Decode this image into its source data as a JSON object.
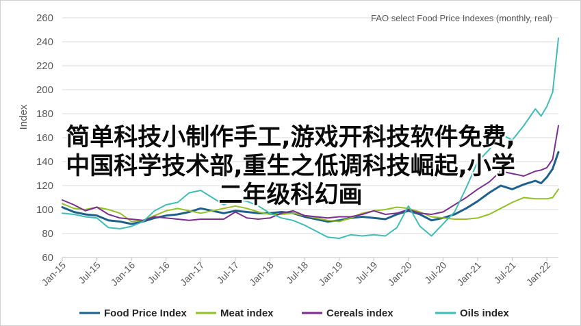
{
  "chart_data": {
    "type": "line",
    "title": "FAO select Food Price Indexes (monthly, real)",
    "ylabel": "Index",
    "ylim": [
      60,
      260
    ],
    "yticks": [
      60,
      80,
      100,
      120,
      140,
      160,
      180,
      200,
      220,
      240,
      260
    ],
    "xlim": [
      "2015-01",
      "2022-03"
    ],
    "xticks": [
      "Jan-15",
      "Jul-15",
      "Jan-16",
      "Jul-16",
      "Jan-17",
      "Jul-17",
      "Jan-18",
      "Jul-18",
      "Jan-19",
      "Jul-19",
      "Jan-20",
      "Jul-20",
      "Jan-21",
      "Jul-21",
      "Jan-22"
    ],
    "grid": true,
    "legend_position": "bottom",
    "series": [
      {
        "name": "Food Price Index",
        "color": "#1f5f8b",
        "points": [
          [
            "2015-01",
            102
          ],
          [
            "2015-03",
            98
          ],
          [
            "2015-05",
            96
          ],
          [
            "2015-07",
            95
          ],
          [
            "2015-09",
            91
          ],
          [
            "2015-11",
            90
          ],
          [
            "2016-01",
            88
          ],
          [
            "2016-03",
            90
          ],
          [
            "2016-05",
            93
          ],
          [
            "2016-07",
            95
          ],
          [
            "2016-09",
            96
          ],
          [
            "2016-11",
            98
          ],
          [
            "2017-01",
            101
          ],
          [
            "2017-03",
            99
          ],
          [
            "2017-05",
            97
          ],
          [
            "2017-07",
            99
          ],
          [
            "2017-09",
            98
          ],
          [
            "2017-11",
            97
          ],
          [
            "2018-01",
            97
          ],
          [
            "2018-03",
            98
          ],
          [
            "2018-05",
            97
          ],
          [
            "2018-07",
            94
          ],
          [
            "2018-09",
            92
          ],
          [
            "2018-11",
            90
          ],
          [
            "2019-01",
            91
          ],
          [
            "2019-03",
            93
          ],
          [
            "2019-05",
            94
          ],
          [
            "2019-07",
            93
          ],
          [
            "2019-09",
            92
          ],
          [
            "2019-11",
            96
          ],
          [
            "2020-01",
            99
          ],
          [
            "2020-03",
            96
          ],
          [
            "2020-05",
            91
          ],
          [
            "2020-07",
            93
          ],
          [
            "2020-09",
            96
          ],
          [
            "2020-11",
            101
          ],
          [
            "2021-01",
            107
          ],
          [
            "2021-03",
            114
          ],
          [
            "2021-05",
            120
          ],
          [
            "2021-07",
            117
          ],
          [
            "2021-09",
            121
          ],
          [
            "2021-11",
            124
          ],
          [
            "2021-12",
            122
          ],
          [
            "2022-01",
            127
          ],
          [
            "2022-02",
            134
          ],
          [
            "2022-03",
            148
          ]
        ]
      },
      {
        "name": "Meat index",
        "color": "#92c026",
        "points": [
          [
            "2015-01",
            105
          ],
          [
            "2015-03",
            101
          ],
          [
            "2015-05",
            100
          ],
          [
            "2015-07",
            102
          ],
          [
            "2015-09",
            100
          ],
          [
            "2015-11",
            97
          ],
          [
            "2016-01",
            90
          ],
          [
            "2016-03",
            91
          ],
          [
            "2016-05",
            95
          ],
          [
            "2016-07",
            99
          ],
          [
            "2016-09",
            101
          ],
          [
            "2016-11",
            99
          ],
          [
            "2017-01",
            97
          ],
          [
            "2017-03",
            99
          ],
          [
            "2017-05",
            101
          ],
          [
            "2017-07",
            103
          ],
          [
            "2017-09",
            101
          ],
          [
            "2017-11",
            98
          ],
          [
            "2018-01",
            96
          ],
          [
            "2018-03",
            96
          ],
          [
            "2018-05",
            97
          ],
          [
            "2018-07",
            95
          ],
          [
            "2018-09",
            93
          ],
          [
            "2018-11",
            91
          ],
          [
            "2019-01",
            90
          ],
          [
            "2019-03",
            93
          ],
          [
            "2019-05",
            97
          ],
          [
            "2019-07",
            99
          ],
          [
            "2019-09",
            100
          ],
          [
            "2019-11",
            102
          ],
          [
            "2020-01",
            101
          ],
          [
            "2020-03",
            98
          ],
          [
            "2020-05",
            94
          ],
          [
            "2020-07",
            93
          ],
          [
            "2020-09",
            92
          ],
          [
            "2020-11",
            92
          ],
          [
            "2021-01",
            93
          ],
          [
            "2021-03",
            96
          ],
          [
            "2021-05",
            101
          ],
          [
            "2021-07",
            106
          ],
          [
            "2021-09",
            110
          ],
          [
            "2021-11",
            109
          ],
          [
            "2021-12",
            109
          ],
          [
            "2022-01",
            109
          ],
          [
            "2022-02",
            110
          ],
          [
            "2022-03",
            117
          ]
        ]
      },
      {
        "name": "Cereals index",
        "color": "#7b2e8e",
        "points": [
          [
            "2015-01",
            108
          ],
          [
            "2015-03",
            104
          ],
          [
            "2015-05",
            99
          ],
          [
            "2015-07",
            102
          ],
          [
            "2015-09",
            96
          ],
          [
            "2015-11",
            93
          ],
          [
            "2016-01",
            92
          ],
          [
            "2016-03",
            91
          ],
          [
            "2016-05",
            94
          ],
          [
            "2016-07",
            93
          ],
          [
            "2016-09",
            92
          ],
          [
            "2016-11",
            91
          ],
          [
            "2017-01",
            92
          ],
          [
            "2017-03",
            92
          ],
          [
            "2017-05",
            92
          ],
          [
            "2017-07",
            98
          ],
          [
            "2017-09",
            93
          ],
          [
            "2017-11",
            92
          ],
          [
            "2018-01",
            93
          ],
          [
            "2018-03",
            97
          ],
          [
            "2018-05",
            99
          ],
          [
            "2018-07",
            95
          ],
          [
            "2018-09",
            94
          ],
          [
            "2018-11",
            93
          ],
          [
            "2019-01",
            94
          ],
          [
            "2019-03",
            94
          ],
          [
            "2019-05",
            96
          ],
          [
            "2019-07",
            99
          ],
          [
            "2019-09",
            96
          ],
          [
            "2019-11",
            97
          ],
          [
            "2020-01",
            100
          ],
          [
            "2020-03",
            97
          ],
          [
            "2020-05",
            96
          ],
          [
            "2020-07",
            98
          ],
          [
            "2020-09",
            104
          ],
          [
            "2020-11",
            110
          ],
          [
            "2021-01",
            117
          ],
          [
            "2021-03",
            123
          ],
          [
            "2021-05",
            132
          ],
          [
            "2021-07",
            130
          ],
          [
            "2021-09",
            128
          ],
          [
            "2021-11",
            132
          ],
          [
            "2021-12",
            133
          ],
          [
            "2022-01",
            135
          ],
          [
            "2022-02",
            142
          ],
          [
            "2022-03",
            170
          ]
        ]
      },
      {
        "name": "Oils index",
        "color": "#3ebcb5",
        "points": [
          [
            "2015-01",
            97
          ],
          [
            "2015-03",
            96
          ],
          [
            "2015-05",
            94
          ],
          [
            "2015-07",
            93
          ],
          [
            "2015-09",
            85
          ],
          [
            "2015-11",
            84
          ],
          [
            "2016-01",
            86
          ],
          [
            "2016-03",
            90
          ],
          [
            "2016-05",
            99
          ],
          [
            "2016-07",
            104
          ],
          [
            "2016-09",
            106
          ],
          [
            "2016-11",
            114
          ],
          [
            "2017-01",
            116
          ],
          [
            "2017-03",
            110
          ],
          [
            "2017-05",
            104
          ],
          [
            "2017-07",
            108
          ],
          [
            "2017-09",
            107
          ],
          [
            "2017-11",
            103
          ],
          [
            "2018-01",
            97
          ],
          [
            "2018-03",
            93
          ],
          [
            "2018-05",
            91
          ],
          [
            "2018-07",
            87
          ],
          [
            "2018-09",
            82
          ],
          [
            "2018-11",
            77
          ],
          [
            "2019-01",
            76
          ],
          [
            "2019-03",
            79
          ],
          [
            "2019-05",
            78
          ],
          [
            "2019-07",
            79
          ],
          [
            "2019-09",
            78
          ],
          [
            "2019-11",
            85
          ],
          [
            "2020-01",
            103
          ],
          [
            "2020-03",
            86
          ],
          [
            "2020-05",
            78
          ],
          [
            "2020-07",
            88
          ],
          [
            "2020-09",
            98
          ],
          [
            "2020-11",
            118
          ],
          [
            "2021-01",
            140
          ],
          [
            "2021-03",
            150
          ],
          [
            "2021-05",
            163
          ],
          [
            "2021-07",
            158
          ],
          [
            "2021-09",
            170
          ],
          [
            "2021-11",
            184
          ],
          [
            "2021-12",
            178
          ],
          [
            "2022-01",
            186
          ],
          [
            "2022-02",
            198
          ],
          [
            "2022-03",
            243
          ]
        ]
      }
    ]
  },
  "overlay": {
    "lines": [
      "简单科技小制作手工,游戏开科技软件免费,",
      "中国科学技术部,重生之低调科技崛起,小学",
      "二年级科幻画"
    ]
  }
}
